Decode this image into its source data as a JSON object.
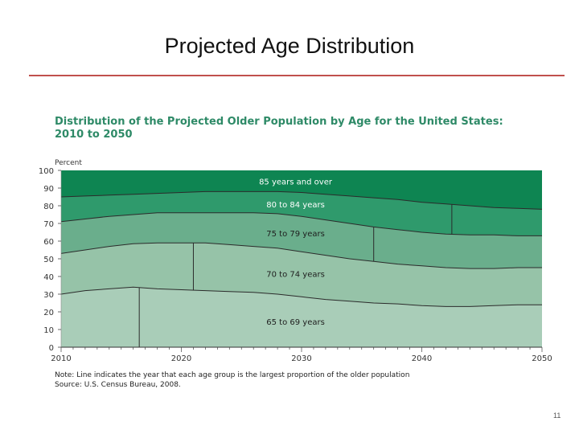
{
  "slide": {
    "title": "Projected Age Distribution",
    "page_number": "11",
    "accent_color": "#c0504d"
  },
  "chart_data": {
    "type": "area",
    "title_line1": "Distribution of the Projected Older Population by Age for the United States:",
    "title_line2": "2010 to 2050",
    "ylabel": "Percent",
    "xlim": [
      2010,
      2050
    ],
    "ylim": [
      0,
      100
    ],
    "x_ticks": [
      2010,
      2020,
      2030,
      2040,
      2050
    ],
    "y_ticks": [
      0,
      10,
      20,
      30,
      40,
      50,
      60,
      70,
      80,
      90,
      100
    ],
    "stacked": true,
    "boundary_x": [
      2010,
      2012,
      2014,
      2016,
      2018,
      2020,
      2022,
      2024,
      2026,
      2028,
      2030,
      2032,
      2034,
      2036,
      2038,
      2040,
      2042,
      2044,
      2046,
      2048,
      2050
    ],
    "series": [
      {
        "name": "65 to 69 years",
        "color": "#a9cdb8",
        "cumulative_top": [
          30,
          32,
          33,
          34,
          33,
          32.5,
          32,
          31.5,
          31,
          30,
          28.5,
          27,
          26,
          25,
          24.5,
          23.5,
          23,
          23,
          23.5,
          24,
          24
        ]
      },
      {
        "name": "70 to 74 years",
        "color": "#96c3a8",
        "cumulative_top": [
          53,
          55,
          57,
          58.5,
          59,
          59,
          59,
          58,
          57,
          56,
          54,
          52,
          50,
          48.5,
          47,
          46,
          45,
          44.5,
          44.5,
          45,
          45
        ]
      },
      {
        "name": "75 to 79 years",
        "color": "#6aae8c",
        "cumulative_top": [
          71,
          72.5,
          74,
          75,
          76,
          76,
          76,
          76,
          76,
          75.5,
          74,
          72,
          70,
          68,
          66.5,
          65,
          64,
          63.5,
          63.5,
          63,
          63
        ]
      },
      {
        "name": "80 to 84 years",
        "color": "#2f9a6c",
        "cumulative_top": [
          85,
          85.5,
          86,
          86.5,
          87,
          87.5,
          88,
          88,
          88,
          88,
          87.5,
          86.5,
          85.5,
          84.5,
          83.5,
          82,
          81,
          80,
          79,
          78.5,
          78
        ]
      },
      {
        "name": "85 years and over",
        "color": "#0e8552",
        "cumulative_top": [
          100,
          100,
          100,
          100,
          100,
          100,
          100,
          100,
          100,
          100,
          100,
          100,
          100,
          100,
          100,
          100,
          100,
          100,
          100,
          100,
          100
        ]
      }
    ],
    "peak_year_markers": [
      {
        "group": "65 to 69 years",
        "x": 2016.5
      },
      {
        "group": "70 to 74 years",
        "x": 2021
      },
      {
        "group": "75 to 79 years",
        "x": 2036
      },
      {
        "group": "80 to 84 years",
        "x": 2042.5
      }
    ],
    "note": "Note: Line indicates the year that each age group is the largest proportion of the older population",
    "source": "Source: U.S. Census Bureau, 2008."
  }
}
